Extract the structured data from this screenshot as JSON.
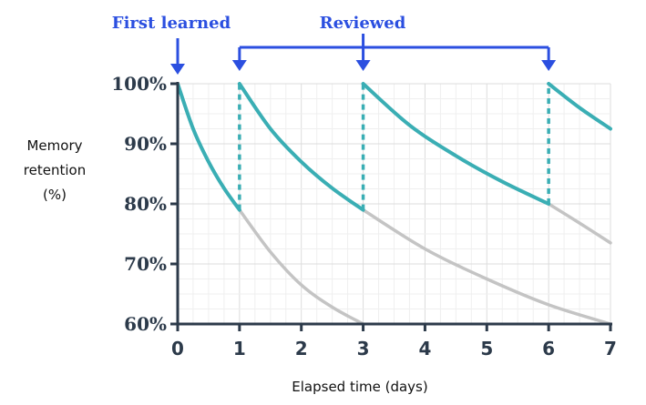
{
  "colors": {
    "retention": "#3aaeb4",
    "decay": "#c4c4c4",
    "annotation": "#2b4fe0",
    "axis": "#2c3a4a",
    "grid_major": "#dcdcdc",
    "grid_minor": "#efefef"
  },
  "chart_data": {
    "type": "line",
    "title": "",
    "xlabel": "Elapsed time (days)",
    "ylabel": "Memory retention (%)",
    "xlim": [
      0,
      7
    ],
    "ylim": [
      60,
      100
    ],
    "xticks": [
      "0",
      "1",
      "2",
      "3",
      "4",
      "5",
      "6",
      "7"
    ],
    "yticks": [
      "60%",
      "70%",
      "80%",
      "90%",
      "100%"
    ],
    "grid": true,
    "annotations": {
      "first_learned": {
        "label": "First learned",
        "x": 0
      },
      "reviewed": {
        "label": "Reviewed",
        "x": [
          1,
          3,
          6
        ]
      }
    },
    "series": [
      {
        "role": "retention",
        "segment": 1,
        "x": [
          0,
          0.25,
          0.5,
          0.75,
          1
        ],
        "y": [
          100,
          92.5,
          87,
          82.6,
          79
        ]
      },
      {
        "role": "retention",
        "segment": 2,
        "x": [
          1,
          1.5,
          2,
          2.5,
          3
        ],
        "y": [
          100,
          92.5,
          87,
          82.6,
          79
        ]
      },
      {
        "role": "retention",
        "segment": 3,
        "x": [
          3,
          3.75,
          4.5,
          5.25,
          6
        ],
        "y": [
          100,
          93.1,
          88,
          83.7,
          80
        ]
      },
      {
        "role": "retention",
        "segment": 4,
        "x": [
          6,
          6.5,
          7
        ],
        "y": [
          100,
          96,
          92.5
        ]
      },
      {
        "role": "decay",
        "segment": 1,
        "x": [
          1,
          1.5,
          2,
          2.5,
          3
        ],
        "y": [
          79,
          72,
          66.5,
          62.8,
          60
        ]
      },
      {
        "role": "decay",
        "segment": 2,
        "x": [
          3,
          4,
          5,
          6,
          7
        ],
        "y": [
          79,
          72.5,
          67.5,
          63.2,
          60
        ]
      },
      {
        "role": "decay",
        "segment": 3,
        "x": [
          6,
          6.5,
          7
        ],
        "y": [
          80,
          76.8,
          73.5
        ]
      }
    ],
    "review_drops": [
      {
        "x": 1,
        "from": 79,
        "to": 100
      },
      {
        "x": 3,
        "from": 79,
        "to": 100
      },
      {
        "x": 6,
        "from": 80,
        "to": 100
      }
    ]
  }
}
